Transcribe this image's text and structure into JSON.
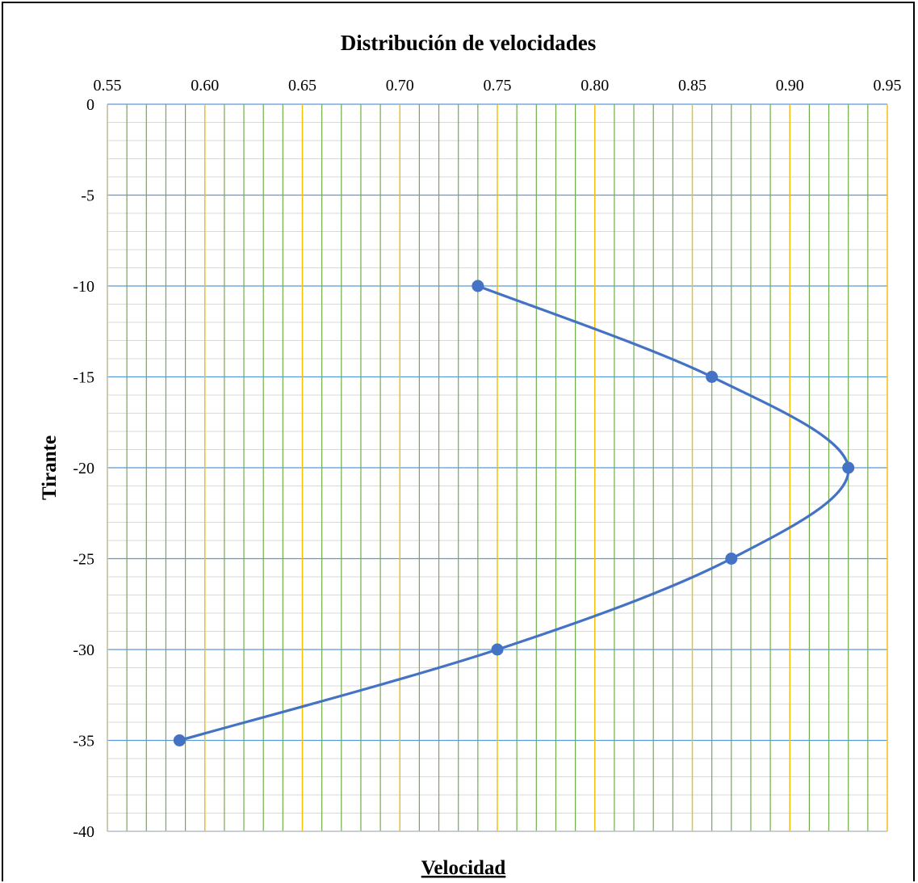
{
  "chart_data": {
    "type": "scatter",
    "title": "Distribución de velocidades",
    "xlabel": "Velocidad",
    "ylabel": "Tirante",
    "x_axis_position": "top",
    "xlim": [
      0.55,
      0.95
    ],
    "ylim": [
      -40,
      0
    ],
    "x_major_step": 0.05,
    "x_minor_step": 0.01,
    "y_major_step": 5,
    "y_minor_step": 1,
    "x_ticks": [
      "0.55",
      "0.60",
      "0.65",
      "0.70",
      "0.75",
      "0.80",
      "0.85",
      "0.90",
      "0.95"
    ],
    "y_ticks": [
      "0",
      "-5",
      "-10",
      "-15",
      "-20",
      "-25",
      "-30",
      "-35",
      "-40"
    ],
    "grid": true,
    "smooth_line": true,
    "series": [
      {
        "x": [
          0.74,
          0.86,
          0.93,
          0.87,
          0.75,
          0.587
        ],
        "y": [
          -10,
          -15,
          -20,
          -25,
          -30,
          -35
        ],
        "color": "#4472C4"
      }
    ],
    "colors": {
      "major_v_grid": "#FFC000",
      "minor_v_grid": "#70AD47",
      "major_h_grid": "#5B9BD5",
      "minor_h_grid": "#D9D9D9",
      "axis": "#BFBFBF"
    }
  }
}
